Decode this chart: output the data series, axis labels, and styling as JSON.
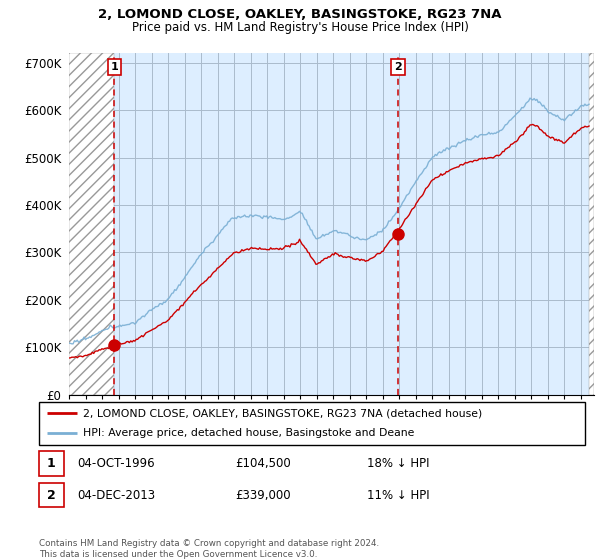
{
  "title1": "2, LOMOND CLOSE, OAKLEY, BASINGSTOKE, RG23 7NA",
  "title2": "Price paid vs. HM Land Registry's House Price Index (HPI)",
  "ylim": [
    0,
    720000
  ],
  "yticks": [
    0,
    100000,
    200000,
    300000,
    400000,
    500000,
    600000,
    700000
  ],
  "ytick_labels": [
    "£0",
    "£100K",
    "£200K",
    "£300K",
    "£400K",
    "£500K",
    "£600K",
    "£700K"
  ],
  "xlim_start": 1994.0,
  "xlim_end": 2025.8,
  "sale1_date": 1996.75,
  "sale1_price": 104500,
  "sale1_label": "1",
  "sale2_date": 2013.92,
  "sale2_price": 339000,
  "sale2_label": "2",
  "legend_line1": "2, LOMOND CLOSE, OAKLEY, BASINGSTOKE, RG23 7NA (detached house)",
  "legend_line2": "HPI: Average price, detached house, Basingstoke and Deane",
  "footnote": "Contains HM Land Registry data © Crown copyright and database right 2024.\nThis data is licensed under the Open Government Licence v3.0.",
  "hatch_end": 1996.75,
  "hatch_end2": 2025.8,
  "line_color_red": "#cc0000",
  "line_color_blue": "#7aafd4",
  "vline_color": "#cc0000",
  "chart_bg": "#ddeeff",
  "grid_color": "#aabbcc"
}
